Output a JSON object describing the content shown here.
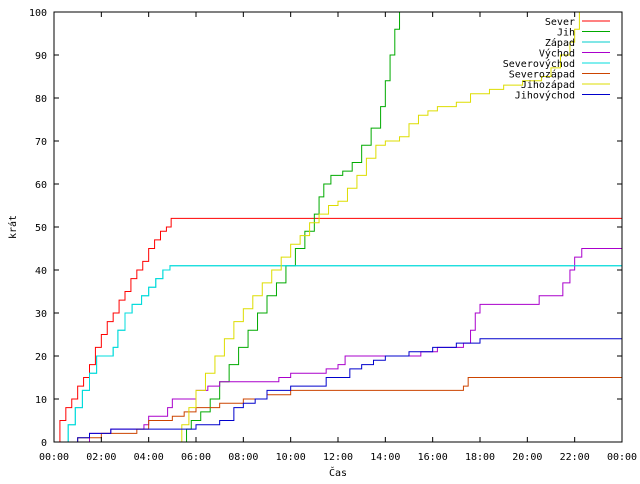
{
  "chart_data": {
    "type": "line",
    "xlabel": "Čas",
    "ylabel": "krát",
    "xlim": [
      0,
      24
    ],
    "ylim": [
      0,
      100
    ],
    "x_ticks": [
      {
        "value": 0,
        "label": "00:00"
      },
      {
        "value": 2,
        "label": "02:00"
      },
      {
        "value": 4,
        "label": "04:00"
      },
      {
        "value": 6,
        "label": "06:00"
      },
      {
        "value": 8,
        "label": "08:00"
      },
      {
        "value": 10,
        "label": "10:00"
      },
      {
        "value": 12,
        "label": "12:00"
      },
      {
        "value": 14,
        "label": "14:00"
      },
      {
        "value": 16,
        "label": "16:00"
      },
      {
        "value": 18,
        "label": "18:00"
      },
      {
        "value": 20,
        "label": "20:00"
      },
      {
        "value": 22,
        "label": "22:00"
      },
      {
        "value": 24,
        "label": "00:00"
      }
    ],
    "y_ticks": [
      0,
      10,
      20,
      30,
      40,
      50,
      60,
      70,
      80,
      90,
      100
    ],
    "grid": false,
    "legend_position": "top-right",
    "series": [
      {
        "name": "Sever",
        "color": "#ff0000",
        "step": true,
        "points": [
          [
            0,
            0
          ],
          [
            0.25,
            5
          ],
          [
            0.5,
            8
          ],
          [
            0.75,
            10
          ],
          [
            1.0,
            13
          ],
          [
            1.25,
            15
          ],
          [
            1.5,
            18
          ],
          [
            1.75,
            22
          ],
          [
            2.0,
            25
          ],
          [
            2.25,
            28
          ],
          [
            2.5,
            30
          ],
          [
            2.75,
            33
          ],
          [
            3.0,
            35
          ],
          [
            3.25,
            38
          ],
          [
            3.5,
            40
          ],
          [
            3.75,
            42
          ],
          [
            4.0,
            45
          ],
          [
            4.25,
            47
          ],
          [
            4.5,
            49
          ],
          [
            4.75,
            50
          ],
          [
            4.95,
            52
          ],
          [
            24,
            52
          ]
        ]
      },
      {
        "name": "Jih",
        "color": "#00aa00",
        "step": true,
        "points": [
          [
            5.4,
            0
          ],
          [
            5.6,
            3
          ],
          [
            5.8,
            5
          ],
          [
            6.2,
            7
          ],
          [
            6.6,
            10
          ],
          [
            7.0,
            14
          ],
          [
            7.4,
            18
          ],
          [
            7.8,
            22
          ],
          [
            8.2,
            26
          ],
          [
            8.6,
            30
          ],
          [
            9.0,
            34
          ],
          [
            9.4,
            37
          ],
          [
            9.8,
            41
          ],
          [
            10.2,
            45
          ],
          [
            10.6,
            49
          ],
          [
            11.0,
            53
          ],
          [
            11.2,
            57
          ],
          [
            11.4,
            60
          ],
          [
            11.7,
            62
          ],
          [
            12.2,
            63
          ],
          [
            12.6,
            65
          ],
          [
            13.0,
            69
          ],
          [
            13.4,
            73
          ],
          [
            13.8,
            78
          ],
          [
            14.0,
            84
          ],
          [
            14.2,
            90
          ],
          [
            14.4,
            96
          ],
          [
            14.6,
            100
          ]
        ]
      },
      {
        "name": "Západ",
        "color": "#00cccc",
        "step": true,
        "points": [
          [
            0.4,
            0
          ],
          [
            0.6,
            4
          ],
          [
            0.9,
            8
          ],
          [
            1.2,
            12
          ],
          [
            1.5,
            16
          ],
          [
            1.8,
            20
          ],
          [
            2.5,
            22
          ],
          [
            2.7,
            26
          ],
          [
            3.0,
            30
          ],
          [
            3.3,
            32
          ],
          [
            3.7,
            34
          ],
          [
            4.0,
            36
          ],
          [
            4.3,
            38
          ],
          [
            4.6,
            40
          ],
          [
            4.9,
            41
          ],
          [
            24,
            41
          ]
        ]
      },
      {
        "name": "Východ",
        "color": "#aa00cc",
        "step": true,
        "points": [
          [
            0,
            0
          ],
          [
            1.5,
            2
          ],
          [
            2.4,
            3
          ],
          [
            3.8,
            4
          ],
          [
            4.0,
            6
          ],
          [
            4.8,
            8
          ],
          [
            5.0,
            10
          ],
          [
            6.0,
            12
          ],
          [
            6.5,
            13
          ],
          [
            7.0,
            14
          ],
          [
            9.5,
            15
          ],
          [
            10.0,
            16
          ],
          [
            11.5,
            17
          ],
          [
            12.0,
            18
          ],
          [
            12.3,
            20
          ],
          [
            15.5,
            21
          ],
          [
            16.2,
            22
          ],
          [
            17.3,
            23
          ],
          [
            17.6,
            26
          ],
          [
            17.8,
            30
          ],
          [
            18.0,
            32
          ],
          [
            20.5,
            34
          ],
          [
            21.5,
            37
          ],
          [
            21.8,
            40
          ],
          [
            22.0,
            43
          ],
          [
            22.3,
            45
          ],
          [
            24,
            45
          ]
        ]
      },
      {
        "name": "Severovýchod",
        "color": "#00dddd",
        "step": true,
        "points": [
          [
            0.4,
            0
          ],
          [
            0.6,
            4
          ],
          [
            0.9,
            8
          ],
          [
            1.2,
            12
          ],
          [
            1.5,
            16
          ],
          [
            1.8,
            20
          ],
          [
            2.5,
            22
          ],
          [
            2.7,
            26
          ],
          [
            3.0,
            30
          ],
          [
            3.3,
            32
          ],
          [
            3.7,
            34
          ],
          [
            4.0,
            36
          ],
          [
            4.3,
            38
          ],
          [
            4.6,
            40
          ],
          [
            4.9,
            41
          ],
          [
            24,
            41
          ]
        ]
      },
      {
        "name": "Severozápad",
        "color": "#cc4400",
        "step": true,
        "points": [
          [
            0.8,
            0
          ],
          [
            1.0,
            1
          ],
          [
            2.0,
            2
          ],
          [
            3.5,
            3
          ],
          [
            4.0,
            5
          ],
          [
            5.0,
            6
          ],
          [
            5.5,
            7
          ],
          [
            6.0,
            8
          ],
          [
            7.0,
            9
          ],
          [
            8.0,
            10
          ],
          [
            9.0,
            11
          ],
          [
            10.0,
            12
          ],
          [
            17.3,
            13
          ],
          [
            17.5,
            15
          ],
          [
            24,
            15
          ]
        ]
      },
      {
        "name": "Jihozápad",
        "color": "#dddd00",
        "step": true,
        "points": [
          [
            5.2,
            0
          ],
          [
            5.4,
            4
          ],
          [
            5.7,
            8
          ],
          [
            6.0,
            12
          ],
          [
            6.4,
            16
          ],
          [
            6.8,
            20
          ],
          [
            7.2,
            24
          ],
          [
            7.6,
            28
          ],
          [
            8.0,
            31
          ],
          [
            8.4,
            34
          ],
          [
            8.8,
            37
          ],
          [
            9.2,
            40
          ],
          [
            9.6,
            43
          ],
          [
            10.0,
            46
          ],
          [
            10.4,
            48
          ],
          [
            10.8,
            51
          ],
          [
            11.2,
            53
          ],
          [
            11.6,
            55
          ],
          [
            12.0,
            56
          ],
          [
            12.4,
            59
          ],
          [
            12.8,
            62
          ],
          [
            13.2,
            66
          ],
          [
            13.6,
            69
          ],
          [
            14.0,
            70
          ],
          [
            14.6,
            71
          ],
          [
            15.0,
            74
          ],
          [
            15.4,
            76
          ],
          [
            15.8,
            77
          ],
          [
            16.2,
            78
          ],
          [
            17.0,
            79
          ],
          [
            17.6,
            81
          ],
          [
            18.4,
            82
          ],
          [
            19.0,
            83
          ],
          [
            19.8,
            84
          ],
          [
            20.6,
            85
          ],
          [
            21.0,
            87
          ],
          [
            21.4,
            90
          ],
          [
            21.8,
            93
          ],
          [
            22.0,
            96
          ],
          [
            22.2,
            100
          ]
        ]
      },
      {
        "name": "Jihovýchod",
        "color": "#0000cc",
        "step": true,
        "points": [
          [
            0,
            0
          ],
          [
            1.0,
            1
          ],
          [
            1.5,
            2
          ],
          [
            2.4,
            3
          ],
          [
            5.0,
            3
          ],
          [
            6.0,
            4
          ],
          [
            7.0,
            5
          ],
          [
            7.6,
            8
          ],
          [
            8.0,
            9
          ],
          [
            8.5,
            10
          ],
          [
            9.0,
            12
          ],
          [
            10.0,
            13
          ],
          [
            11.5,
            15
          ],
          [
            12.5,
            17
          ],
          [
            13.0,
            18
          ],
          [
            13.5,
            19
          ],
          [
            14.0,
            20
          ],
          [
            15.0,
            21
          ],
          [
            16.0,
            22
          ],
          [
            17.0,
            23
          ],
          [
            18.0,
            24
          ],
          [
            24,
            24
          ]
        ]
      }
    ]
  }
}
